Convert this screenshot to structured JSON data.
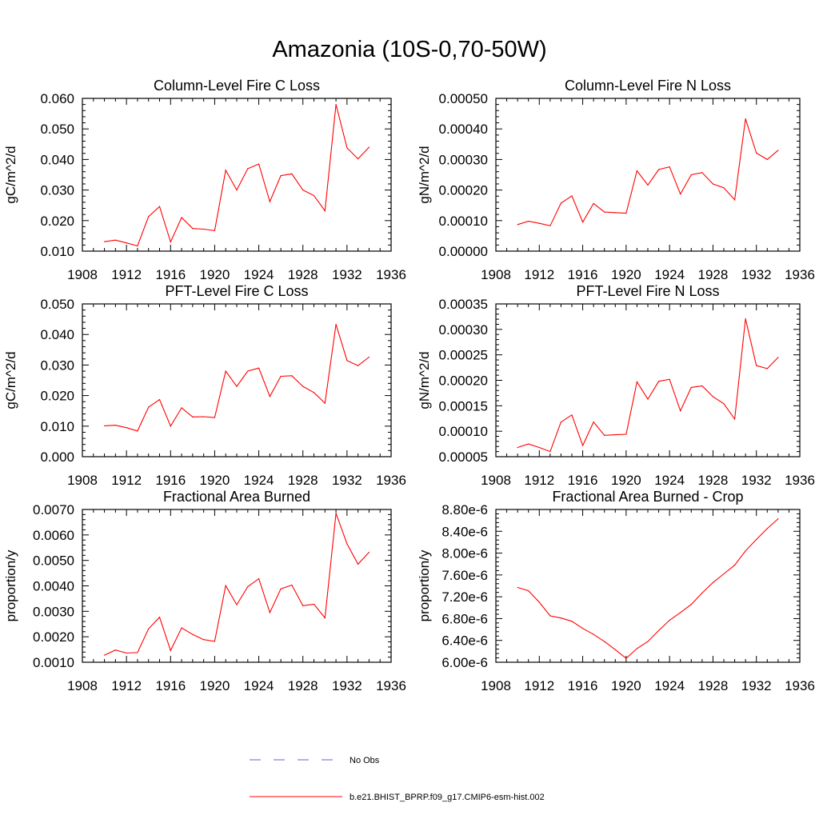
{
  "title": "Amazonia (10S-0,70-50W)",
  "colors": {
    "series": "#ff0000",
    "obs": "#6666cc",
    "axis": "#000000"
  },
  "legend": {
    "entries": [
      {
        "name": "No Obs",
        "style": "dashed",
        "color": "#6666cc"
      },
      {
        "name": "b.e21.BHIST_BPRP.f09_g17.CMIP6-esm-hist.002",
        "style": "solid",
        "color": "#ff0000"
      }
    ]
  },
  "chart_data": [
    {
      "type": "line",
      "title": "Column-Level Fire C Loss",
      "ylabel": "gC/m^2/d",
      "xlim": [
        1908,
        1936
      ],
      "xticks": [
        "1908",
        "1912",
        "1916",
        "1920",
        "1924",
        "1928",
        "1932",
        "1936"
      ],
      "ylim": [
        0.01,
        0.06
      ],
      "yticks": [
        "0.010",
        "0.020",
        "0.030",
        "0.040",
        "0.050",
        "0.060"
      ],
      "series": [
        {
          "x": [
            1910,
            1911,
            1912,
            1913,
            1914,
            1915,
            1916,
            1917,
            1918,
            1919,
            1920,
            1921,
            1922,
            1923,
            1924,
            1925,
            1926,
            1927,
            1928,
            1929,
            1930,
            1931,
            1932,
            1933,
            1934
          ],
          "y": [
            0.0131,
            0.0136,
            0.0127,
            0.0117,
            0.0213,
            0.0246,
            0.013,
            0.021,
            0.0174,
            0.0172,
            0.0167,
            0.0365,
            0.03,
            0.037,
            0.0385,
            0.0262,
            0.0347,
            0.0353,
            0.03,
            0.0282,
            0.0232,
            0.058,
            0.0438,
            0.0402,
            0.044
          ]
        }
      ]
    },
    {
      "type": "line",
      "title": "Column-Level Fire N Loss",
      "ylabel": "gN/m^2/d",
      "xlim": [
        1908,
        1936
      ],
      "xticks": [
        "1908",
        "1912",
        "1916",
        "1920",
        "1924",
        "1928",
        "1932",
        "1936"
      ],
      "ylim": [
        0.0,
        0.0005
      ],
      "yticks": [
        "0.00000",
        "0.00010",
        "0.00020",
        "0.00030",
        "0.00040",
        "0.00050"
      ],
      "series": [
        {
          "x": [
            1910,
            1911,
            1912,
            1913,
            1914,
            1915,
            1916,
            1917,
            1918,
            1919,
            1920,
            1921,
            1922,
            1923,
            1924,
            1925,
            1926,
            1927,
            1928,
            1929,
            1930,
            1931,
            1932,
            1933,
            1934
          ],
          "y": [
            8.7e-05,
            9.8e-05,
            9.1e-05,
            8.3e-05,
            0.000157,
            0.000181,
            9.5e-05,
            0.000156,
            0.000128,
            0.000126,
            0.000124,
            0.000263,
            0.000216,
            0.000267,
            0.000276,
            0.000187,
            0.00025,
            0.000257,
            0.00022,
            0.000207,
            0.000168,
            0.000433,
            0.000321,
            0.0003,
            0.00033
          ]
        }
      ]
    },
    {
      "type": "line",
      "title": "PFT-Level Fire C Loss",
      "ylabel": "gC/m^2/d",
      "xlim": [
        1908,
        1936
      ],
      "xticks": [
        "1908",
        "1912",
        "1916",
        "1920",
        "1924",
        "1928",
        "1932",
        "1936"
      ],
      "ylim": [
        0.0,
        0.05
      ],
      "yticks": [
        "0.000",
        "0.010",
        "0.020",
        "0.030",
        "0.040",
        "0.050"
      ],
      "series": [
        {
          "x": [
            1910,
            1911,
            1912,
            1913,
            1914,
            1915,
            1916,
            1917,
            1918,
            1919,
            1920,
            1921,
            1922,
            1923,
            1924,
            1925,
            1926,
            1927,
            1928,
            1929,
            1930,
            1931,
            1932,
            1933,
            1934
          ],
          "y": [
            0.0101,
            0.0103,
            0.0095,
            0.0084,
            0.0162,
            0.0187,
            0.01,
            0.016,
            0.013,
            0.0131,
            0.0128,
            0.028,
            0.023,
            0.028,
            0.029,
            0.0197,
            0.0263,
            0.0265,
            0.023,
            0.021,
            0.0175,
            0.0433,
            0.0315,
            0.0298,
            0.0326
          ]
        }
      ]
    },
    {
      "type": "line",
      "title": "PFT-Level Fire N Loss",
      "ylabel": "gN/m^2/d",
      "xlim": [
        1908,
        1936
      ],
      "xticks": [
        "1908",
        "1912",
        "1916",
        "1920",
        "1924",
        "1928",
        "1932",
        "1936"
      ],
      "ylim": [
        5e-05,
        0.00035
      ],
      "yticks": [
        "0.00005",
        "0.00010",
        "0.00015",
        "0.00020",
        "0.00025",
        "0.00030",
        "0.00035"
      ],
      "series": [
        {
          "x": [
            1910,
            1911,
            1912,
            1913,
            1914,
            1915,
            1916,
            1917,
            1918,
            1919,
            1920,
            1921,
            1922,
            1923,
            1924,
            1925,
            1926,
            1927,
            1928,
            1929,
            1930,
            1931,
            1932,
            1933,
            1934
          ],
          "y": [
            6.8e-05,
            7.5e-05,
            6.8e-05,
            6e-05,
            0.000118,
            0.000132,
            7.2e-05,
            0.000118,
            9.2e-05,
            9.3e-05,
            9.4e-05,
            0.000197,
            0.000163,
            0.000198,
            0.000202,
            0.00014,
            0.000186,
            0.000189,
            0.000168,
            0.000154,
            0.000124,
            0.000321,
            0.000229,
            0.000223,
            0.000245
          ]
        }
      ]
    },
    {
      "type": "line",
      "title": "Fractional Area Burned",
      "ylabel": "proportion/y",
      "xlim": [
        1908,
        1936
      ],
      "xticks": [
        "1908",
        "1912",
        "1916",
        "1920",
        "1924",
        "1928",
        "1932",
        "1936"
      ],
      "ylim": [
        0.001,
        0.007
      ],
      "yticks": [
        "0.0010",
        "0.0020",
        "0.0030",
        "0.0040",
        "0.0050",
        "0.0060",
        "0.0070"
      ],
      "series": [
        {
          "x": [
            1910,
            1911,
            1912,
            1913,
            1914,
            1915,
            1916,
            1917,
            1918,
            1919,
            1920,
            1921,
            1922,
            1923,
            1924,
            1925,
            1926,
            1927,
            1928,
            1929,
            1930,
            1931,
            1932,
            1933,
            1934
          ],
          "y": [
            0.00128,
            0.00148,
            0.00136,
            0.00138,
            0.00231,
            0.00277,
            0.00146,
            0.00235,
            0.00209,
            0.00189,
            0.00182,
            0.00401,
            0.00326,
            0.00397,
            0.00428,
            0.00295,
            0.00388,
            0.00403,
            0.00322,
            0.00328,
            0.00274,
            0.00685,
            0.00565,
            0.00485,
            0.00532
          ]
        }
      ]
    },
    {
      "type": "line",
      "title": "Fractional Area Burned - Crop",
      "ylabel": "proportion/y",
      "xlim": [
        1908,
        1936
      ],
      "xticks": [
        "1908",
        "1912",
        "1916",
        "1920",
        "1924",
        "1928",
        "1932",
        "1936"
      ],
      "ylim": [
        6e-06,
        8.8e-06
      ],
      "yticks": [
        "6.00e-6",
        "6.40e-6",
        "6.80e-6",
        "7.20e-6",
        "7.60e-6",
        "8.00e-6",
        "8.40e-6",
        "8.80e-6"
      ],
      "series": [
        {
          "x": [
            1910,
            1911,
            1912,
            1913,
            1914,
            1915,
            1916,
            1917,
            1918,
            1919,
            1920,
            1921,
            1922,
            1923,
            1924,
            1925,
            1926,
            1927,
            1928,
            1929,
            1930,
            1931,
            1932,
            1933,
            1934
          ],
          "y": [
            7.37e-06,
            7.31e-06,
            7.1e-06,
            6.85e-06,
            6.81e-06,
            6.75e-06,
            6.62e-06,
            6.51e-06,
            6.38e-06,
            6.23e-06,
            6.07e-06,
            6.25e-06,
            6.38e-06,
            6.58e-06,
            6.77e-06,
            6.91e-06,
            7.06e-06,
            7.27e-06,
            7.46e-06,
            7.62e-06,
            7.78e-06,
            8.04e-06,
            8.25e-06,
            8.45e-06,
            8.63e-06
          ]
        }
      ]
    }
  ]
}
